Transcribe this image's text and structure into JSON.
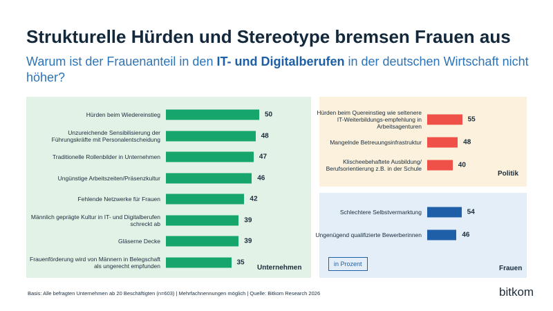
{
  "header": {
    "title": "Strukturelle Hürden und Stereotype bremsen Frauen aus",
    "subtitle_parts": [
      "Warum ist der Frauenanteil in den ",
      "IT- und Digitalberufen",
      " in der deutschen Wirtschaft nicht höher?"
    ]
  },
  "chart_data": [
    {
      "type": "bar",
      "orientation": "horizontal",
      "title": "Unternehmen",
      "color": "#16a66c",
      "categories": [
        "Hürden beim Wiedereinstieg",
        "Unzureichende Sensibilisierung der Führungskräfte mit Personalentscheidung",
        "Traditionelle Rollenbilder in Unternehmen",
        "Ungünstige Arbeitszeiten/Präsenzkultur",
        "Fehlende Netzwerke für Frauen",
        "Männlich geprägte Kultur in IT- und Digitalberufen schreckt ab",
        "Gläserne Decke",
        "Frauenförderung wird von Männern in Belegschaft als ungerecht empfunden"
      ],
      "values": [
        50,
        48,
        47,
        46,
        42,
        39,
        39,
        35
      ]
    },
    {
      "type": "bar",
      "orientation": "horizontal",
      "title": "Politik",
      "color": "#ef5148",
      "categories": [
        "Hürden beim Quereinstieg wie seltenere IT-Weiterbildungs-empfehlung in Arbeitsagenturen",
        "Mangelnde Betreuungsinfrastruktur",
        "Klischeebehaftete Ausbildung/ Berufsorientierung z.B. in der Schule"
      ],
      "values": [
        55,
        48,
        40
      ]
    },
    {
      "type": "bar",
      "orientation": "horizontal",
      "title": "Frauen",
      "color": "#1f5fa8",
      "note": "in Prozent",
      "categories": [
        "Schlechtere Selbstvermarktung",
        "Ungenügend qualifizierte Bewerberinnen"
      ],
      "values": [
        54,
        46
      ]
    }
  ],
  "footer": {
    "source": "Basis: Alle befragten Unternehmen ab 20 Beschäftigten (n=603) | Mehrfachnennungen möglich | Quelle: Bitkom Research 2026",
    "logo": "bitkom"
  }
}
